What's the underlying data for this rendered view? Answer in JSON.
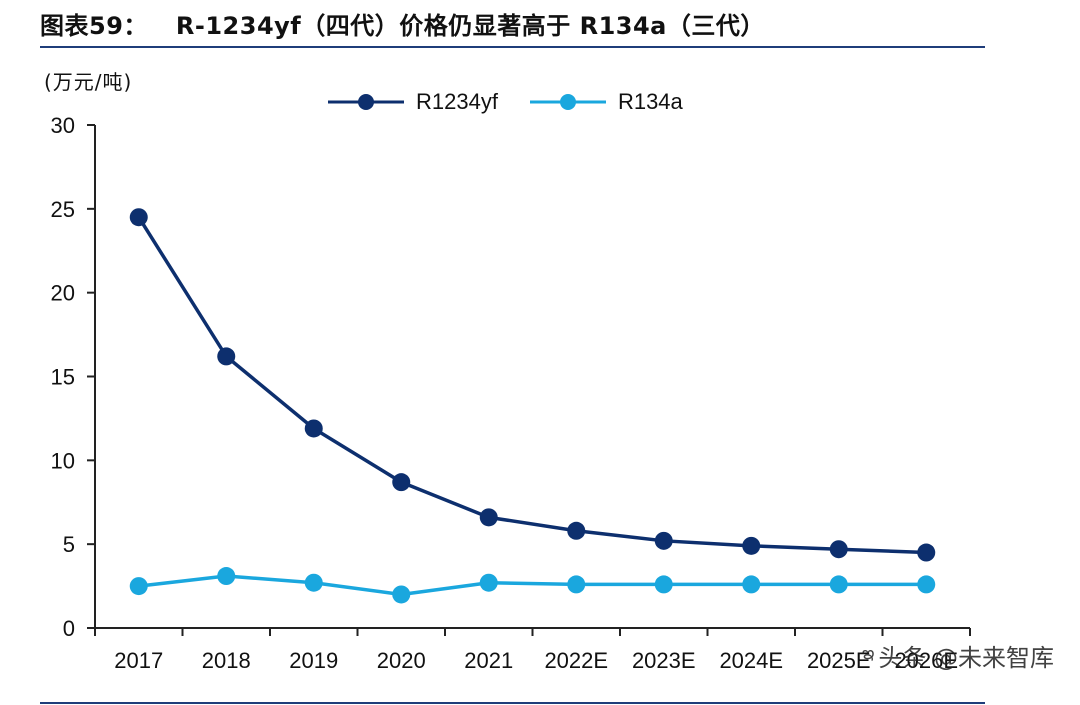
{
  "header": {
    "figure_number": "图表59：",
    "title": "R-1234yf（四代）价格仍显著高于 R134a（三代）"
  },
  "watermark": {
    "text": "头条 @未来智库"
  },
  "chart_data": {
    "type": "line",
    "unit_label": "(万元/吨)",
    "categories": [
      "2017",
      "2018",
      "2019",
      "2020",
      "2021",
      "2022E",
      "2023E",
      "2024E",
      "2025E",
      "2026E"
    ],
    "series": [
      {
        "name": "R1234yf",
        "color": "#0d2f6e",
        "values": [
          24.5,
          16.2,
          11.9,
          8.7,
          6.6,
          5.8,
          5.2,
          4.9,
          4.7,
          4.5
        ]
      },
      {
        "name": "R134a",
        "color": "#1aa7de",
        "values": [
          2.5,
          3.1,
          2.7,
          2.0,
          2.7,
          2.6,
          2.6,
          2.6,
          2.6,
          2.6
        ]
      }
    ],
    "ylim": [
      0,
      30
    ],
    "yticks": [
      0,
      5,
      10,
      15,
      20,
      25,
      30
    ],
    "legend": "top-center",
    "grid": false
  }
}
